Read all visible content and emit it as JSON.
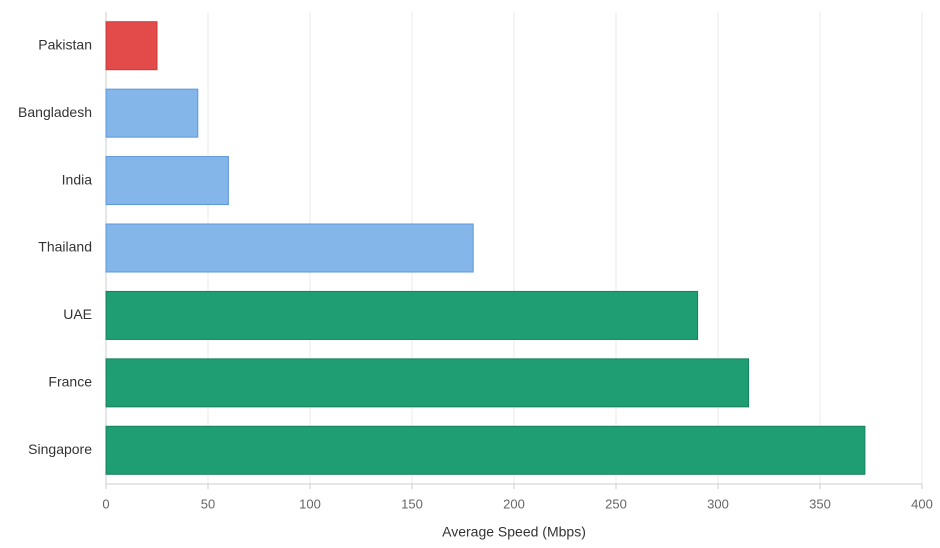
{
  "chart_data": {
    "type": "bar",
    "orientation": "horizontal",
    "x_label": "Average Speed (Mbps)",
    "categories": [
      "Pakistan",
      "Bangladesh",
      "India",
      "Thailand",
      "UAE",
      "France",
      "Singapore"
    ],
    "values": [
      25,
      45,
      60,
      180,
      290,
      315,
      372
    ],
    "colors": [
      "#e34b4b",
      "#85b6ea",
      "#85b6ea",
      "#85b6ea",
      "#1f9e74",
      "#1f9e74",
      "#1f9e74"
    ],
    "edge_colors": [
      "#c93a3a",
      "#5d96d9",
      "#5d96d9",
      "#5d96d9",
      "#17805f",
      "#17805f",
      "#17805f"
    ],
    "xlim": [
      0,
      400
    ],
    "xticks": [
      0,
      50,
      100,
      150,
      200,
      250,
      300,
      350,
      400
    ],
    "grid": true
  }
}
